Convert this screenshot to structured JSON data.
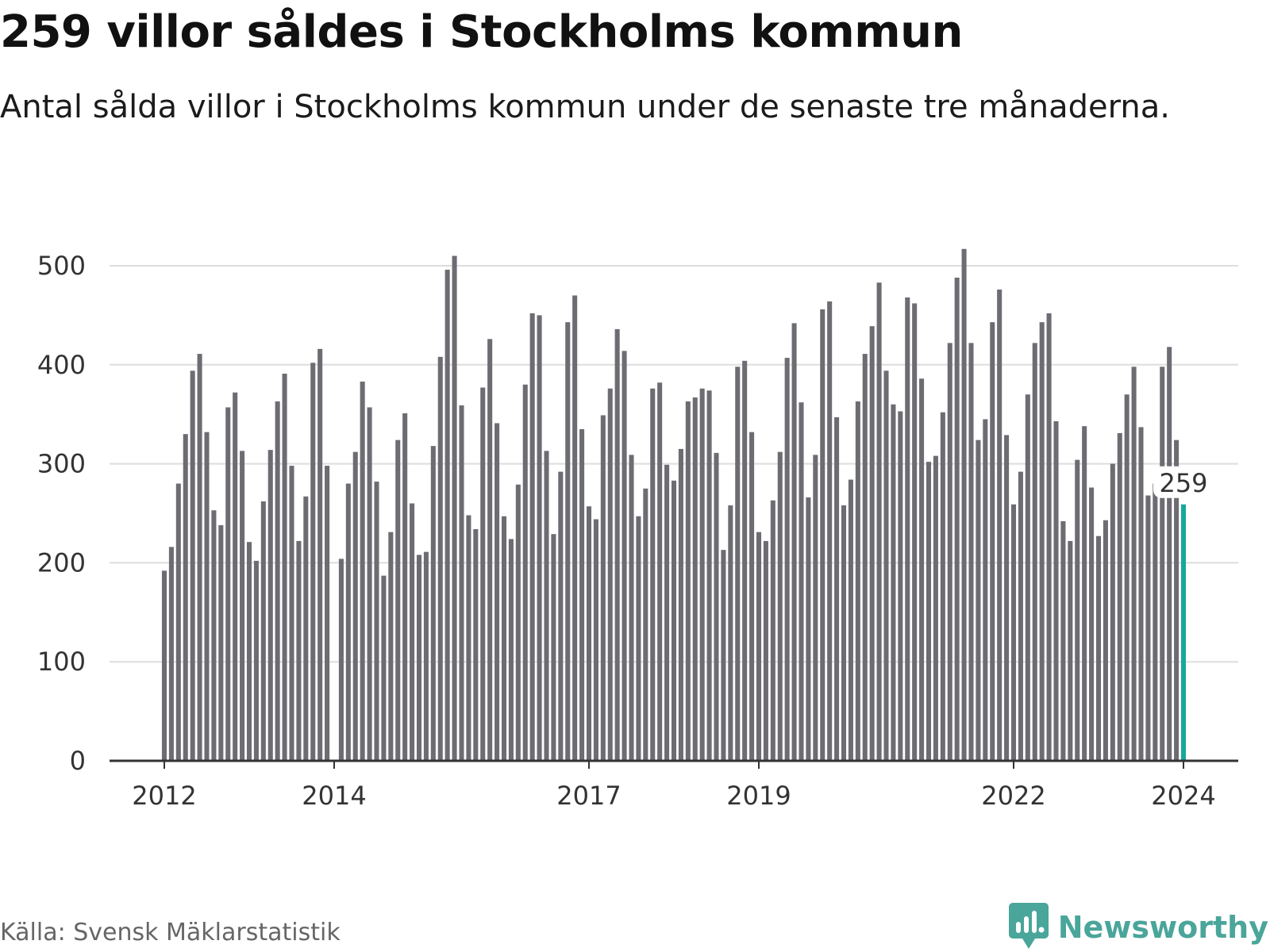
{
  "title": "259 villor såldes i Stockholms kommun",
  "subtitle": "Antal sålda villor i Stockholms kommun under de senaste tre månaderna.",
  "source": "Källa: Svensk Mäklarstatistik",
  "brand": {
    "name": "Newsworthy",
    "icon": "newsworthy-logo-icon",
    "color": "#4aa59a"
  },
  "colors": {
    "bar": "#6d6c72",
    "highlight": "#17a89c",
    "grid": "#dddddd",
    "axis": "#333333"
  },
  "chart_data": {
    "type": "bar",
    "title": "259 villor såldes i Stockholms kommun",
    "xlabel": "",
    "ylabel": "",
    "ylim": [
      0,
      520
    ],
    "yticks": [
      0,
      100,
      200,
      300,
      400,
      500
    ],
    "grid": true,
    "legend": "none",
    "x_start": "2012-01",
    "x_ticks": [
      {
        "label": "2012",
        "index": 0
      },
      {
        "label": "2014",
        "index": 24
      },
      {
        "label": "2017",
        "index": 60
      },
      {
        "label": "2019",
        "index": 84
      },
      {
        "label": "2022",
        "index": 120
      },
      {
        "label": "2024",
        "index": 144
      }
    ],
    "highlight": {
      "index": 144,
      "value": 259,
      "label": "259"
    },
    "values": [
      192,
      216,
      280,
      330,
      394,
      411,
      332,
      253,
      238,
      357,
      372,
      313,
      221,
      202,
      262,
      314,
      363,
      391,
      298,
      222,
      267,
      402,
      416,
      298,
      null,
      204,
      280,
      312,
      383,
      357,
      282,
      187,
      231,
      324,
      351,
      260,
      208,
      211,
      318,
      408,
      496,
      510,
      359,
      248,
      234,
      377,
      426,
      341,
      247,
      224,
      279,
      380,
      452,
      450,
      313,
      229,
      292,
      443,
      470,
      335,
      257,
      244,
      349,
      376,
      436,
      414,
      309,
      247,
      275,
      376,
      382,
      299,
      283,
      315,
      363,
      367,
      376,
      374,
      311,
      213,
      258,
      398,
      404,
      332,
      231,
      222,
      263,
      312,
      407,
      442,
      362,
      266,
      309,
      456,
      464,
      347,
      258,
      284,
      363,
      411,
      439,
      483,
      394,
      360,
      353,
      468,
      462,
      386,
      302,
      308,
      352,
      422,
      488,
      517,
      422,
      324,
      345,
      443,
      476,
      329,
      259,
      292,
      370,
      422,
      443,
      452,
      343,
      242,
      222,
      304,
      338,
      276,
      227,
      243,
      300,
      331,
      370,
      398,
      337,
      268,
      280,
      398,
      418,
      324,
      259
    ]
  }
}
